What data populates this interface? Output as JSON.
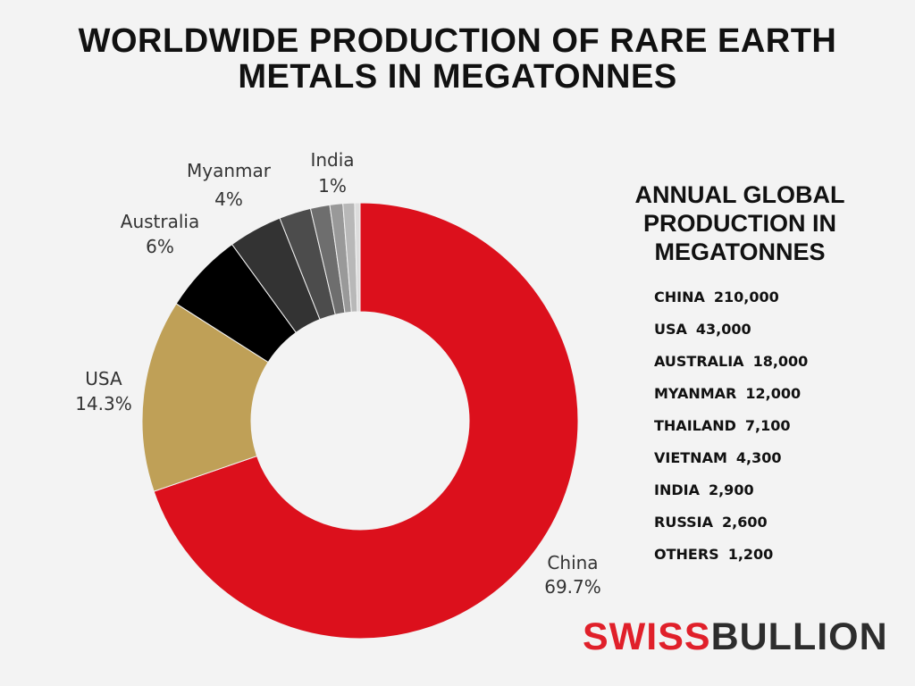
{
  "title": {
    "line1": "WORLDWIDE PRODUCTION OF RARE EARTH",
    "line2": "METALS IN MEGATONNES"
  },
  "side_panel": {
    "title_line1": "ANNUAL GLOBAL",
    "title_line2": "PRODUCTION IN",
    "title_line3": "MEGATONNES",
    "rows": [
      {
        "country": "CHINA",
        "value": "210,000"
      },
      {
        "country": "USA",
        "value": "43,000"
      },
      {
        "country": "AUSTRALIA",
        "value": "18,000"
      },
      {
        "country": "MYANMAR",
        "value": "12,000"
      },
      {
        "country": "THAILAND",
        "value": "7,100"
      },
      {
        "country": "VIETNAM",
        "value": "4,300"
      },
      {
        "country": "INDIA",
        "value": "2,900"
      },
      {
        "country": "RUSSIA",
        "value": "2,600"
      },
      {
        "country": "OTHERS",
        "value": "1,200"
      }
    ]
  },
  "brand": {
    "part1": "SWISS",
    "part2": "BULLION"
  },
  "chart_data": {
    "type": "pie",
    "variant": "donut",
    "categories": [
      "China",
      "USA",
      "Australia",
      "Myanmar",
      "Thailand",
      "Vietnam",
      "India",
      "Russia",
      "Others"
    ],
    "values": [
      210000,
      43000,
      18000,
      12000,
      7100,
      4300,
      2900,
      2600,
      1200
    ],
    "colors": [
      "#dc101c",
      "#bfa057",
      "#000000",
      "#333333",
      "#4c4c4c",
      "#6e6e6e",
      "#999999",
      "#b8b8b8",
      "#dddddd"
    ],
    "labels": [
      {
        "name": "China",
        "percent": "69.7%"
      },
      {
        "name": "USA",
        "percent": "14.3%"
      },
      {
        "name": "Australia",
        "percent": "6%"
      },
      {
        "name": "Myanmar",
        "percent": "4%"
      },
      {
        "name": "India",
        "percent": "1%"
      }
    ],
    "title": "WORLDWIDE PRODUCTION OF RARE EARTH METALS IN MEGATONNES"
  }
}
